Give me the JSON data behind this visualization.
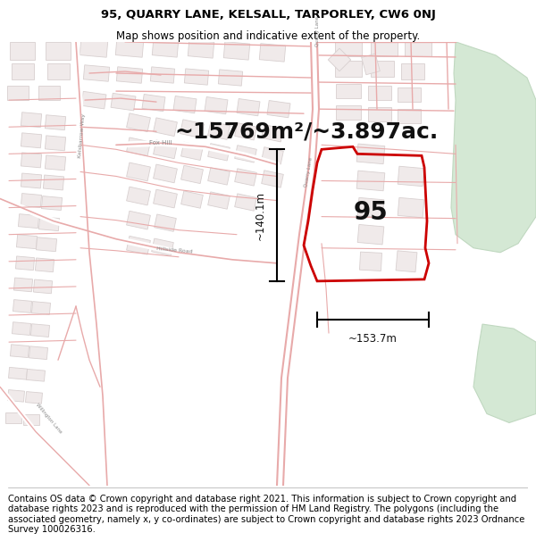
{
  "title_line1": "95, QUARRY LANE, KELSALL, TARPORLEY, CW6 0NJ",
  "title_line2": "Map shows position and indicative extent of the property.",
  "area_text": "~15769m²/~3.897ac.",
  "label_95": "95",
  "dim_height": "~140.1m",
  "dim_width": "~153.7m",
  "footer_text": "Contains OS data © Crown copyright and database right 2021. This information is subject to Crown copyright and database rights 2023 and is reproduced with the permission of HM Land Registry. The polygons (including the associated geometry, namely x, y co-ordinates) are subject to Crown copyright and database rights 2023 Ordnance Survey 100026316.",
  "bg_color": "#ffffff",
  "map_bg": "#ffffff",
  "road_color": "#e8aaaa",
  "building_color": "#d8d0d0",
  "building_fc": "#f0eaea",
  "red_polygon": "#cc0000",
  "green_patch_color": "#d4e8d4",
  "green_patch_edge": "#c0d8c0",
  "fig_width": 6.0,
  "fig_height": 6.25,
  "title_fontsize": 9.5,
  "subtitle_fontsize": 8.5,
  "area_fontsize": 18,
  "label_fontsize": 20,
  "dim_fontsize": 8.5,
  "footer_fontsize": 7.2
}
